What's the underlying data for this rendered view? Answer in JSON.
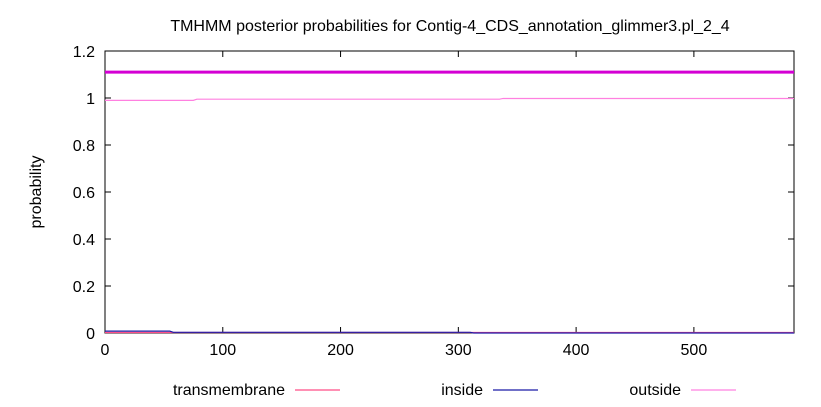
{
  "chart_data": {
    "type": "line",
    "title": "TMHMM posterior probabilities for Contig-4_CDS_annotation_glimmer3.pl_2_4",
    "xlabel": "",
    "ylabel": "probability",
    "xlim": [
      0,
      585
    ],
    "ylim": [
      0,
      1.2
    ],
    "x_ticks": [
      0,
      100,
      200,
      300,
      400,
      500
    ],
    "y_ticks": [
      0,
      0.2,
      0.4,
      0.6,
      0.8,
      1,
      1.2
    ],
    "y_tick_labels": [
      "0",
      "0.2",
      "0.4",
      "0.6",
      "0.8",
      "1",
      "1.2"
    ],
    "grid": false,
    "legend_position": "bottom",
    "series": [
      {
        "name": "transmembrane",
        "color": "#ff4d88",
        "points": [
          [
            0,
            0.002
          ],
          [
            585,
            0.002
          ]
        ]
      },
      {
        "name": "inside",
        "color": "#1a1aa6",
        "points": [
          [
            0,
            0.008
          ],
          [
            55,
            0.008
          ],
          [
            58,
            0.003
          ],
          [
            310,
            0.003
          ],
          [
            313,
            0.0
          ],
          [
            585,
            0.0
          ]
        ]
      },
      {
        "name": "outside",
        "color": "#ff80e0",
        "points": [
          [
            0,
            0.99
          ],
          [
            75,
            0.99
          ],
          [
            78,
            0.995
          ],
          [
            335,
            0.995
          ],
          [
            338,
            0.998
          ],
          [
            585,
            0.998
          ]
        ]
      }
    ],
    "annotations": [
      {
        "kind": "horizontal-line",
        "y": 1.11,
        "color": "#d400d4"
      }
    ]
  }
}
